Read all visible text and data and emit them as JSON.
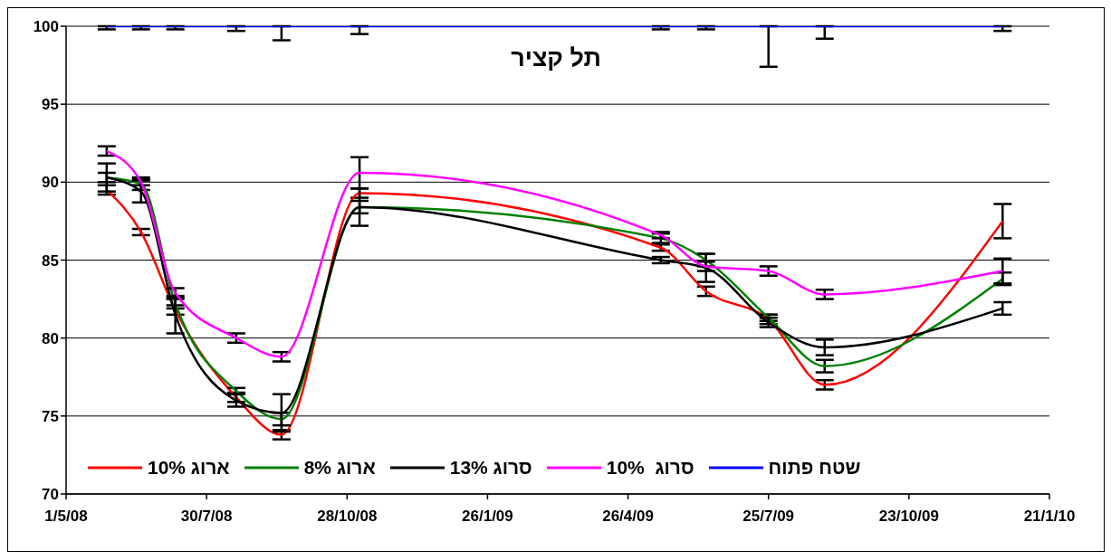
{
  "chart_data": {
    "type": "line",
    "title": "תל קציר",
    "x": [
      "2008-05-27",
      "2008-06-18",
      "2008-07-10",
      "2008-08-18",
      "2008-09-16",
      "2008-11-05",
      "2009-05-17",
      "2009-06-15",
      "2009-07-25",
      "2009-08-30",
      "2009-12-22"
    ],
    "xlim": [
      "2008-05-01",
      "2010-01-21"
    ],
    "xticks": [
      {
        "value": "2008-05-01",
        "label": "1/5/08"
      },
      {
        "value": "2008-07-30",
        "label": "30/7/08"
      },
      {
        "value": "2008-10-28",
        "label": "28/10/08"
      },
      {
        "value": "2009-01-26",
        "label": "26/1/09"
      },
      {
        "value": "2009-04-26",
        "label": "26/4/09"
      },
      {
        "value": "2009-07-25",
        "label": "25/7/09"
      },
      {
        "value": "2009-10-23",
        "label": "23/10/09"
      },
      {
        "value": "2010-01-21",
        "label": "21/1/10"
      }
    ],
    "ylim": [
      70,
      100
    ],
    "yticks": [
      70,
      75,
      80,
      85,
      90,
      95,
      100
    ],
    "grid": "y",
    "legend": "bottom",
    "marker": "none",
    "line_style": "solid",
    "series": [
      {
        "name": "ארוג 10%",
        "color": "#ff0000",
        "values": [
          89.5,
          86.8,
          81.8,
          76.2,
          73.8,
          89.3,
          85.8,
          83.0,
          81.2,
          77.0,
          87.5
        ],
        "errors": [
          0.3,
          0.2,
          0.3,
          0.3,
          0.3,
          0.3,
          0.2,
          0.3,
          0.3,
          0.3,
          1.1
        ]
      },
      {
        "name": "ארוג 8%",
        "color": "#008000",
        "values": [
          90.3,
          89.9,
          82.2,
          76.6,
          74.8,
          88.4,
          86.4,
          85.0,
          81.3,
          78.2,
          83.8
        ],
        "errors": [
          0.3,
          0.4,
          0.3,
          0.2,
          0.4,
          0.4,
          0.3,
          0.4,
          0.2,
          0.4,
          0.4
        ]
      },
      {
        "name": "סרוג 13%",
        "color": "#000000",
        "values": [
          90.3,
          89.4,
          81.5,
          76.0,
          75.2,
          88.4,
          85.0,
          84.5,
          81.0,
          79.4,
          81.9
        ],
        "errors": [
          0.9,
          0.7,
          1.2,
          0.4,
          1.2,
          1.2,
          0.2,
          0.9,
          0.3,
          0.5,
          0.4
        ]
      },
      {
        "name": "סרוג  10%",
        "color": "#ff00ff",
        "values": [
          92.0,
          90.0,
          82.9,
          80.0,
          78.8,
          90.6,
          86.6,
          84.6,
          84.3,
          82.8,
          84.3
        ],
        "errors": [
          0.3,
          0.2,
          0.3,
          0.3,
          0.3,
          1.0,
          0.2,
          0.3,
          0.3,
          0.3,
          0.8
        ]
      },
      {
        "name": "שטח פתוח",
        "color": "#0000ff",
        "values": [
          100,
          100,
          100,
          100,
          100,
          100,
          100,
          100,
          100,
          100,
          100
        ],
        "errors": [
          [
            99.8,
            100
          ],
          [
            99.8,
            100
          ],
          [
            99.8,
            100
          ],
          [
            99.7,
            100
          ],
          [
            99.1,
            100
          ],
          [
            99.5,
            100
          ],
          [
            99.8,
            100
          ],
          [
            99.8,
            100
          ],
          [
            97.4,
            100
          ],
          [
            99.2,
            100
          ],
          [
            99.7,
            100
          ]
        ]
      }
    ]
  }
}
